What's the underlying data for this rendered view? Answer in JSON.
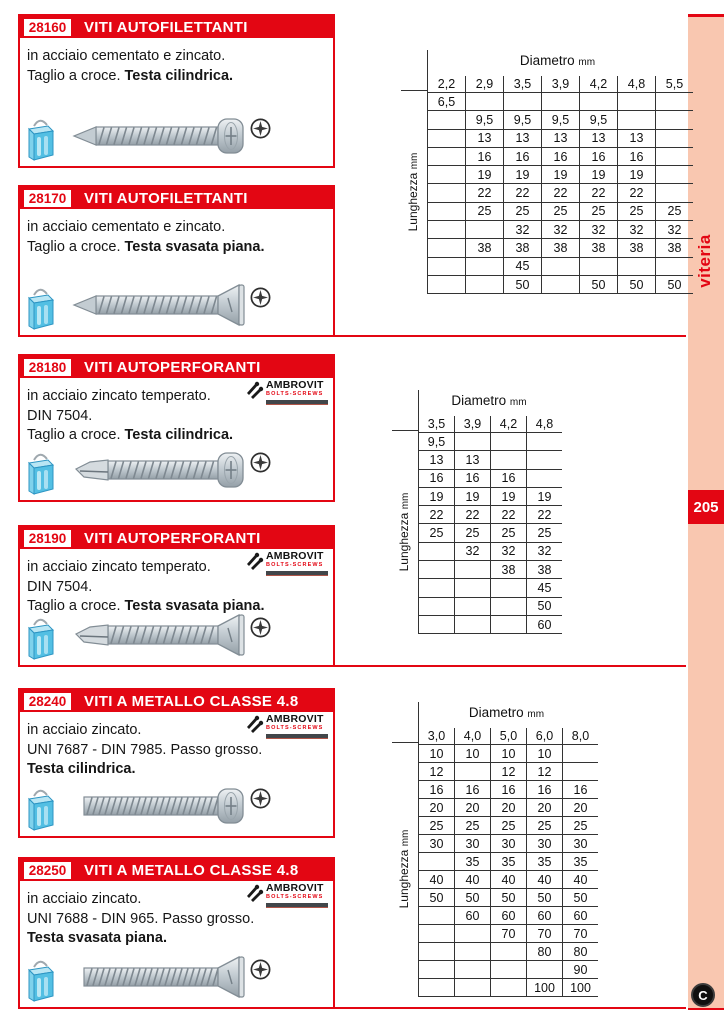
{
  "sidebar": {
    "tab_label": "viteria",
    "page_number": "205",
    "footer_logo_letter": "C"
  },
  "brand": {
    "name": "AMBROVIT",
    "subtitle": "BOLTS-SCREWS"
  },
  "labels": {
    "diametro": "Diametro",
    "lunghezza": "Lunghezza",
    "mm": "mm"
  },
  "colors": {
    "accent_red": "#e30613",
    "sidebar_peach": "#f9c7b0"
  },
  "products": [
    {
      "code": "28160",
      "title": "VITI AUTOFILETTANTI",
      "brand_logo": false,
      "description": [
        {
          "plain": "in acciaio cementato e zincato.",
          "bold": ""
        },
        {
          "plain": "Taglio a croce. ",
          "bold": "Testa cilindrica."
        }
      ],
      "screw": {
        "tip": "point",
        "head": "pan"
      }
    },
    {
      "code": "28170",
      "title": "VITI AUTOFILETTANTI",
      "brand_logo": false,
      "description": [
        {
          "plain": "in acciaio cementato e zincato.",
          "bold": ""
        },
        {
          "plain": "Taglio a croce. ",
          "bold": "Testa svasata piana."
        }
      ],
      "screw": {
        "tip": "point",
        "head": "flat"
      }
    },
    {
      "code": "28180",
      "title": "VITI AUTOPERFORANTI",
      "brand_logo": true,
      "description": [
        {
          "plain": "in acciaio zincato temperato.",
          "bold": ""
        },
        {
          "plain": "DIN 7504.",
          "bold": ""
        },
        {
          "plain": "Taglio a croce. ",
          "bold": "Testa cilindrica."
        }
      ],
      "screw": {
        "tip": "drill",
        "head": "pan"
      }
    },
    {
      "code": "28190",
      "title": "VITI AUTOPERFORANTI",
      "brand_logo": true,
      "description": [
        {
          "plain": "in acciaio zincato temperato.",
          "bold": ""
        },
        {
          "plain": "DIN 7504.",
          "bold": ""
        },
        {
          "plain": "Taglio a croce. ",
          "bold": "Testa svasata piana."
        }
      ],
      "screw": {
        "tip": "drill",
        "head": "flat"
      }
    },
    {
      "code": "28240",
      "title": "VITI A METALLO CLASSE 4.8",
      "brand_logo": true,
      "description": [
        {
          "plain": "in acciaio zincato.",
          "bold": ""
        },
        {
          "plain": "UNI 7687 - DIN 7985. Passo grosso.",
          "bold": ""
        },
        {
          "plain": "",
          "bold": "Testa cilindrica."
        }
      ],
      "screw": {
        "tip": "blunt",
        "head": "pan"
      }
    },
    {
      "code": "28250",
      "title": "VITI A METALLO CLASSE 4.8",
      "brand_logo": true,
      "description": [
        {
          "plain": "in acciaio zincato.",
          "bold": ""
        },
        {
          "plain": "UNI 7688 - DIN 965. Passo grosso.",
          "bold": ""
        },
        {
          "plain": "",
          "bold": "Testa svasata piana."
        }
      ],
      "screw": {
        "tip": "blunt",
        "head": "flat"
      }
    }
  ],
  "tables": [
    {
      "title_unit": "mm",
      "columns": [
        "2,2",
        "2,9",
        "3,5",
        "3,9",
        "4,2",
        "4,8",
        "5,5"
      ],
      "rows": [
        [
          "6,5",
          "",
          "",
          "",
          "",
          "",
          ""
        ],
        [
          "",
          "9,5",
          "9,5",
          "9,5",
          "9,5",
          "",
          ""
        ],
        [
          "",
          "13",
          "13",
          "13",
          "13",
          "13",
          ""
        ],
        [
          "",
          "16",
          "16",
          "16",
          "16",
          "16",
          ""
        ],
        [
          "",
          "19",
          "19",
          "19",
          "19",
          "19",
          ""
        ],
        [
          "",
          "22",
          "22",
          "22",
          "22",
          "22",
          ""
        ],
        [
          "",
          "25",
          "25",
          "25",
          "25",
          "25",
          "25"
        ],
        [
          "",
          "",
          "32",
          "32",
          "32",
          "32",
          "32"
        ],
        [
          "",
          "38",
          "38",
          "38",
          "38",
          "38",
          "38"
        ],
        [
          "",
          "",
          "45",
          "",
          "",
          "",
          ""
        ],
        [
          "",
          "",
          "50",
          "",
          "50",
          "50",
          "50"
        ]
      ]
    },
    {
      "title_unit": "mm",
      "columns": [
        "3,5",
        "3,9",
        "4,2",
        "4,8"
      ],
      "rows": [
        [
          "9,5",
          "",
          "",
          ""
        ],
        [
          "13",
          "13",
          "",
          ""
        ],
        [
          "16",
          "16",
          "16",
          ""
        ],
        [
          "19",
          "19",
          "19",
          "19"
        ],
        [
          "22",
          "22",
          "22",
          "22"
        ],
        [
          "25",
          "25",
          "25",
          "25"
        ],
        [
          "",
          "32",
          "32",
          "32"
        ],
        [
          "",
          "",
          "38",
          "38"
        ],
        [
          "",
          "",
          "",
          "45"
        ],
        [
          "",
          "",
          "",
          "50"
        ],
        [
          "",
          "",
          "",
          "60"
        ]
      ]
    },
    {
      "title_unit": "mm",
      "columns": [
        "3,0",
        "4,0",
        "5,0",
        "6,0",
        "8,0"
      ],
      "rows": [
        [
          "10",
          "10",
          "10",
          "10",
          ""
        ],
        [
          "12",
          "",
          "12",
          "12",
          ""
        ],
        [
          "16",
          "16",
          "16",
          "16",
          "16"
        ],
        [
          "20",
          "20",
          "20",
          "20",
          "20"
        ],
        [
          "25",
          "25",
          "25",
          "25",
          "25"
        ],
        [
          "30",
          "30",
          "30",
          "30",
          "30"
        ],
        [
          "",
          "35",
          "35",
          "35",
          "35"
        ],
        [
          "40",
          "40",
          "40",
          "40",
          "40"
        ],
        [
          "50",
          "50",
          "50",
          "50",
          "50"
        ],
        [
          "",
          "60",
          "60",
          "60",
          "60"
        ],
        [
          "",
          "",
          "70",
          "70",
          "70"
        ],
        [
          "",
          "",
          "",
          "80",
          "80"
        ],
        [
          "",
          "",
          "",
          "",
          "90"
        ],
        [
          "",
          "",
          "",
          "100",
          "100"
        ]
      ]
    }
  ]
}
